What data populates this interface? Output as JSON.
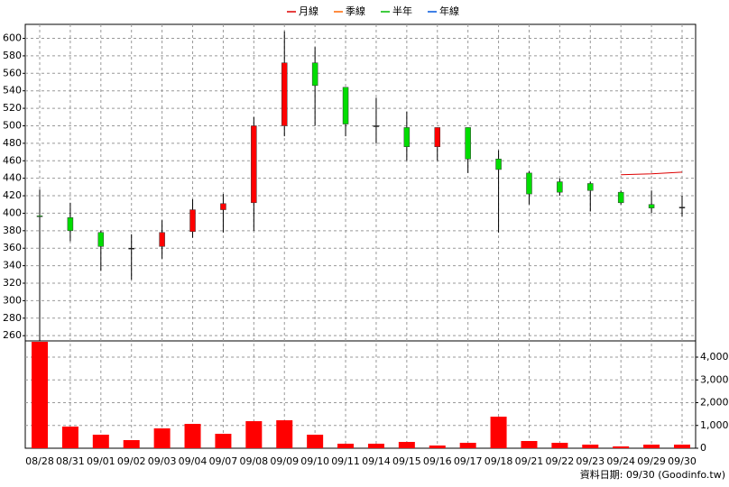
{
  "chart_data": {
    "type": "candlestick",
    "categories": [
      "08/28",
      "08/31",
      "09/01",
      "09/02",
      "09/03",
      "09/04",
      "09/07",
      "09/08",
      "09/09",
      "09/10",
      "09/11",
      "09/14",
      "09/15",
      "09/16",
      "09/17",
      "09/18",
      "09/21",
      "09/22",
      "09/23",
      "09/24",
      "09/29",
      "09/30"
    ],
    "open": [
      397,
      395,
      378,
      360,
      362,
      379,
      404,
      412,
      500,
      572,
      544,
      500,
      498,
      476,
      498,
      462,
      446,
      436,
      434,
      424,
      410,
      407
    ],
    "high": [
      427,
      412,
      380,
      376,
      392,
      416,
      422,
      510,
      608,
      590,
      544,
      532,
      516,
      498,
      498,
      472,
      448,
      440,
      436,
      426,
      426,
      420
    ],
    "low": [
      254,
      368,
      334,
      324,
      348,
      372,
      378,
      380,
      488,
      500,
      488,
      480,
      460,
      460,
      446,
      378,
      410,
      420,
      402,
      410,
      400,
      396
    ],
    "close": [
      396,
      380,
      362,
      360,
      378,
      404,
      411,
      500,
      572,
      546,
      502,
      500,
      476,
      498,
      462,
      450,
      422,
      424,
      426,
      412,
      406,
      407
    ],
    "up_color": "#ff0000",
    "down_color": "#00dd00",
    "series": [
      {
        "name": "月線",
        "color": "#dd0000",
        "values": [
          null,
          null,
          null,
          null,
          null,
          null,
          null,
          null,
          null,
          null,
          null,
          null,
          null,
          null,
          null,
          null,
          null,
          null,
          null,
          444,
          445,
          447
        ]
      },
      {
        "name": "季線",
        "color": "#ff6600",
        "values": [
          null,
          null,
          null,
          null,
          null,
          null,
          null,
          null,
          null,
          null,
          null,
          null,
          null,
          null,
          null,
          null,
          null,
          null,
          null,
          null,
          null,
          null
        ]
      },
      {
        "name": "半年",
        "color": "#00bb00",
        "values": [
          null,
          null,
          null,
          null,
          null,
          null,
          null,
          null,
          null,
          null,
          null,
          null,
          null,
          null,
          null,
          null,
          null,
          null,
          null,
          null,
          null,
          null
        ]
      },
      {
        "name": "年線",
        "color": "#0055dd",
        "values": [
          null,
          null,
          null,
          null,
          null,
          null,
          null,
          null,
          null,
          null,
          null,
          null,
          null,
          null,
          null,
          null,
          null,
          null,
          null,
          null,
          null,
          null
        ]
      }
    ],
    "ylim": [
      254,
      616
    ],
    "yticks": [
      260,
      280,
      300,
      320,
      340,
      360,
      380,
      400,
      420,
      440,
      460,
      480,
      500,
      520,
      540,
      560,
      580,
      600
    ],
    "volume": {
      "color": "#ff0000",
      "values": [
        4673,
        950,
        594,
        356,
        871,
        1069,
        634,
        1188,
        1228,
        594,
        198,
        198,
        277,
        119,
        238,
        1386,
        317,
        238,
        158,
        79,
        158,
        158
      ]
    },
    "y2lim": [
      0,
      4713
    ],
    "y2ticks": [
      0,
      {
        "value": 1000,
        "label": "1,000"
      },
      {
        "value": 2000,
        "label": "2,000"
      },
      {
        "value": 3000,
        "label": "3,000"
      },
      {
        "value": 4000,
        "label": "4,000"
      }
    ],
    "grid": true,
    "footer": "資料日期: 09/30  (Goodinfo.tw)"
  }
}
